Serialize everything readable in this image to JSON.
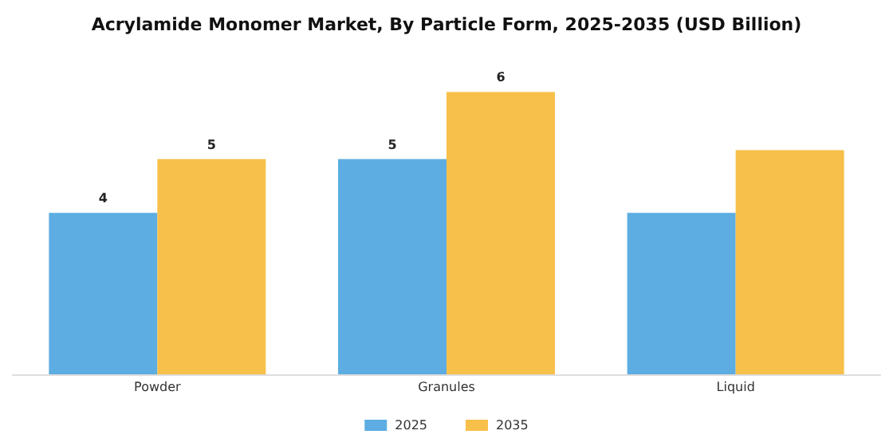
{
  "chart_data": {
    "type": "bar",
    "title": "Acrylamide Monomer Market, By Particle Form, 2025-2035 (USD Billion)",
    "categories": [
      "Powder",
      "Granules",
      "Liquid"
    ],
    "series": [
      {
        "name": "2025",
        "color": "#5dade2",
        "values": [
          3.6,
          4.8,
          3.6
        ],
        "value_labels": [
          "4",
          "5",
          null
        ]
      },
      {
        "name": "2035",
        "color": "#f7c04a",
        "values": [
          4.8,
          6.3,
          5.0
        ],
        "value_labels": [
          "5",
          "6",
          null
        ]
      }
    ],
    "legend": "bottom"
  }
}
